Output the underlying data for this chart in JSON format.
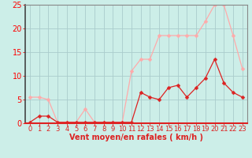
{
  "x": [
    0,
    1,
    2,
    3,
    4,
    5,
    6,
    7,
    8,
    9,
    10,
    11,
    12,
    13,
    14,
    15,
    16,
    17,
    18,
    19,
    20,
    21,
    22,
    23
  ],
  "y_rafales": [
    5.5,
    5.5,
    5.0,
    0.2,
    0.2,
    0.2,
    3.0,
    0.2,
    0.2,
    0.2,
    0.2,
    11.0,
    13.5,
    13.5,
    18.5,
    18.5,
    18.5,
    18.5,
    18.5,
    21.5,
    25.0,
    25.0,
    18.5,
    11.5
  ],
  "y_moyen": [
    0.2,
    1.5,
    1.5,
    0.2,
    0.2,
    0.2,
    0.2,
    0.2,
    0.2,
    0.2,
    0.2,
    0.2,
    6.5,
    5.5,
    5.0,
    7.5,
    8.0,
    5.5,
    7.5,
    9.5,
    13.5,
    8.5,
    6.5,
    5.5
  ],
  "color_rafales": "#ffaaaa",
  "color_moyen": "#dd2222",
  "bg_color": "#cceee8",
  "grid_color": "#aacccc",
  "xlabel": "Vent moyen/en rafales ( km/h )",
  "ylim": [
    0,
    25
  ],
  "xlim": [
    -0.5,
    23.5
  ],
  "yticks": [
    0,
    5,
    10,
    15,
    20,
    25
  ],
  "xticks": [
    0,
    1,
    2,
    3,
    4,
    5,
    6,
    7,
    8,
    9,
    10,
    11,
    12,
    13,
    14,
    15,
    16,
    17,
    18,
    19,
    20,
    21,
    22,
    23
  ],
  "xlabel_fontsize": 7,
  "tick_fontsize": 6,
  "ytick_fontsize": 7,
  "marker_size": 2.5,
  "line_width": 0.9
}
